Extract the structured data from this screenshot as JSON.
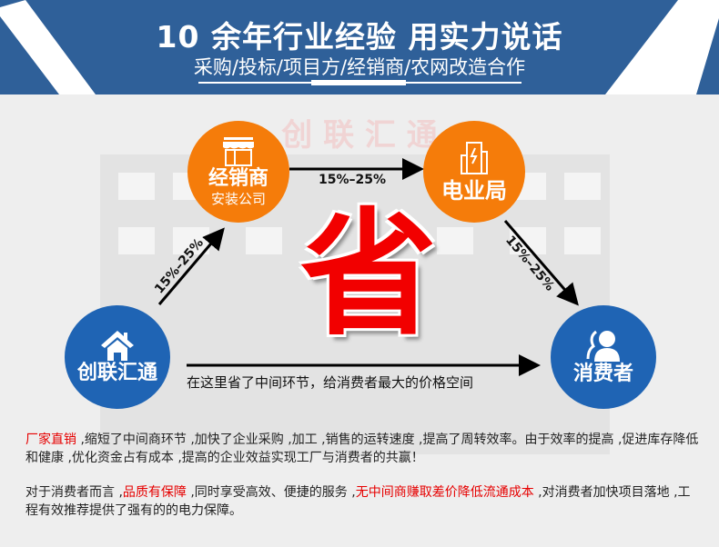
{
  "header": {
    "title": "10 余年行业经验 用实力说话",
    "subtitle": "采购/投标/项目方/经销商/农网改造合作",
    "color": "#2f6099"
  },
  "watermark": "创 联 汇 通",
  "nodes": {
    "dealer": {
      "name": "经销商",
      "sub": "安装公司",
      "icon": "storefront-icon",
      "color": "#f57c0a"
    },
    "power_bureau": {
      "name": "电业局",
      "icon": "power-building-icon",
      "color": "#f57c0a"
    },
    "company": {
      "name": "创联汇通",
      "icon": "house-icon",
      "color": "#1f64b4"
    },
    "consumer": {
      "name": "消费者",
      "icon": "user-icon",
      "color": "#1f64b4"
    }
  },
  "arrows": {
    "left": "15%–25%",
    "top": "15%–25%",
    "right": "15%–25%"
  },
  "save_char": "省",
  "direct_caption": "在这里省了中间环节，给消费者最大的价格空间",
  "paragraph1": {
    "highlight": "厂家直销",
    "text": " ,缩短了中间商环节 ,加快了企业采购 ,加工 ,销售的运转速度 ,提高了周转效率。由于效率的提高 ,促进库存降低和健康 ,优化资金占有成本 ,提高的企业效益实现工厂与消费者的共赢！"
  },
  "paragraph2": {
    "text1": "对于消费者而言 ,",
    "highlight1": "品质有保障",
    "text2": " ,同时享受高效、便捷的服务 ,",
    "highlight2": "无中间商赚取差价降低流通成本",
    "text3": " ,对消费者加快项目落地 ,工程有效推荐提供了强有的的电力保障。"
  }
}
